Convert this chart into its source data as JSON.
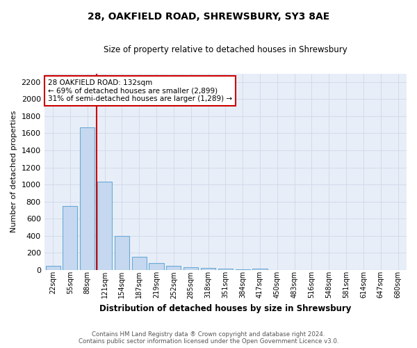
{
  "title1": "28, OAKFIELD ROAD, SHREWSBURY, SY3 8AE",
  "title2": "Size of property relative to detached houses in Shrewsbury",
  "xlabel": "Distribution of detached houses by size in Shrewsbury",
  "ylabel": "Number of detached properties",
  "footer1": "Contains HM Land Registry data ® Crown copyright and database right 2024.",
  "footer2": "Contains public sector information licensed under the Open Government Licence v3.0.",
  "bar_labels": [
    "22sqm",
    "55sqm",
    "88sqm",
    "121sqm",
    "154sqm",
    "187sqm",
    "219sqm",
    "252sqm",
    "285sqm",
    "318sqm",
    "351sqm",
    "384sqm",
    "417sqm",
    "450sqm",
    "483sqm",
    "516sqm",
    "548sqm",
    "581sqm",
    "614sqm",
    "647sqm",
    "680sqm"
  ],
  "bar_values": [
    50,
    750,
    1670,
    1030,
    400,
    150,
    80,
    45,
    32,
    22,
    15,
    10,
    18,
    0,
    0,
    0,
    0,
    0,
    0,
    0,
    0
  ],
  "bar_color": "#c5d8f0",
  "bar_edge_color": "#6aaad4",
  "grid_color": "#d0d8e8",
  "background_color": "#e8eef8",
  "vline_color": "#cc0000",
  "annotation_text": "28 OAKFIELD ROAD: 132sqm\n← 69% of detached houses are smaller (2,899)\n31% of semi-detached houses are larger (1,289) →",
  "annotation_box_color": "#ffffff",
  "annotation_box_edge_color": "#cc0000",
  "ylim": [
    0,
    2300
  ],
  "yticks": [
    0,
    200,
    400,
    600,
    800,
    1000,
    1200,
    1400,
    1600,
    1800,
    2000,
    2200
  ],
  "vline_pos": 2.55
}
